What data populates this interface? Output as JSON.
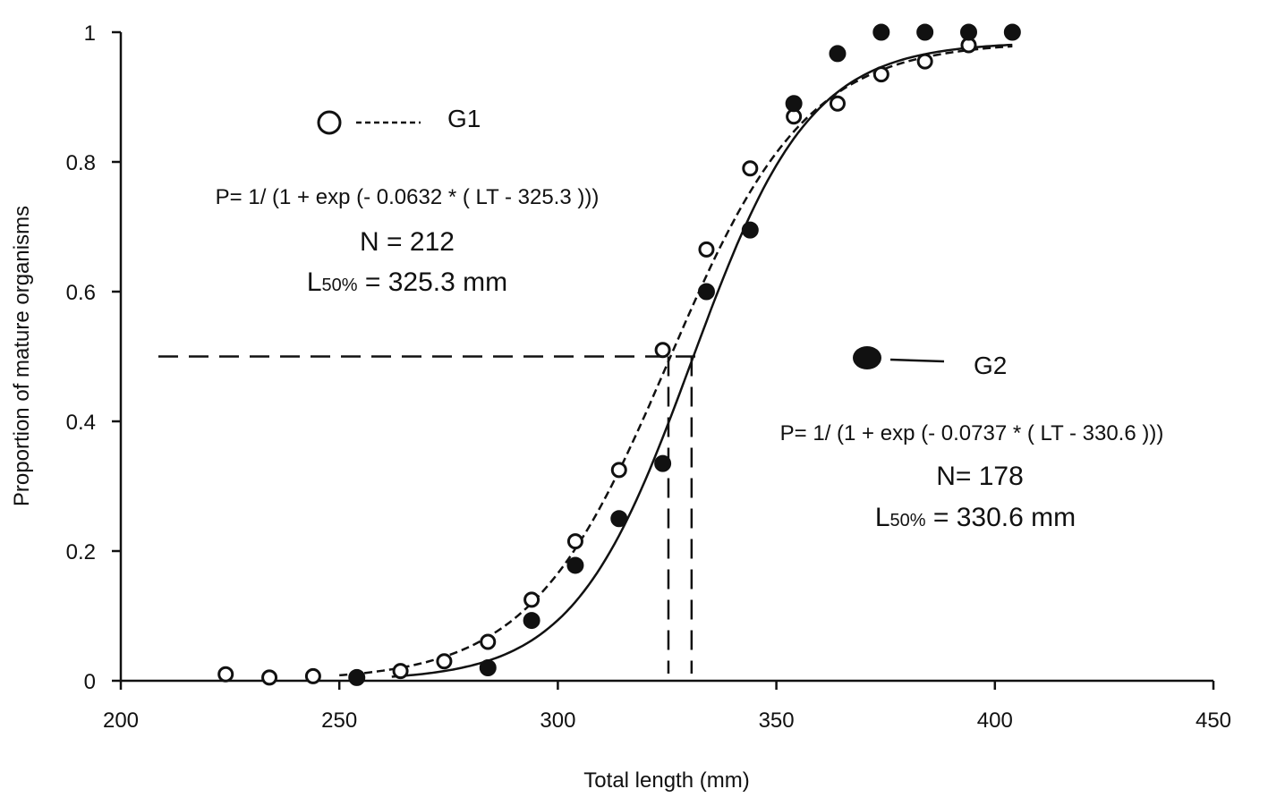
{
  "chart_data": {
    "type": "scatter",
    "title": "",
    "xlabel": "Total length (mm)",
    "ylabel": "Proportion of mature organisms",
    "xlim": [
      200,
      450
    ],
    "ylim": [
      0,
      1
    ],
    "xticks": [
      200,
      250,
      300,
      350,
      400,
      450
    ],
    "yticks": [
      0,
      0.2,
      0.4,
      0.6,
      0.8,
      1
    ],
    "ytick_labels": [
      "0",
      "0.2",
      "0.4",
      "0.6",
      "0.8",
      "1"
    ],
    "grid": false,
    "series": [
      {
        "name": "G1",
        "marker": "open-circle",
        "line": "dashed",
        "x": [
          224,
          234,
          244,
          264,
          274,
          284,
          294,
          304,
          314,
          324,
          334,
          344,
          354,
          364,
          374,
          384,
          394
        ],
        "y": [
          0.01,
          0.005,
          0.007,
          0.015,
          0.03,
          0.06,
          0.125,
          0.215,
          0.325,
          0.51,
          0.665,
          0.79,
          0.87,
          0.89,
          0.935,
          0.955,
          0.98
        ],
        "model": {
          "slope": 0.0632,
          "l50": 325.3
        },
        "equation": "P= 1/ (1 + exp (- 0.0632 * ( LT - 325.3 )))",
        "n_label": "N = 212",
        "l50_prefix": "L",
        "l50_sub": "50%",
        "l50_value": " = 325.3 mm"
      },
      {
        "name": "G2",
        "marker": "filled-circle",
        "line": "solid",
        "x": [
          254,
          284,
          294,
          304,
          314,
          324,
          334,
          344,
          354,
          364,
          374,
          384,
          394,
          404
        ],
        "y": [
          0.005,
          0.02,
          0.093,
          0.178,
          0.25,
          0.335,
          0.6,
          0.695,
          0.89,
          0.967,
          1.0,
          1.0,
          1.0,
          1.0
        ],
        "model": {
          "slope": 0.0737,
          "l50": 330.6
        },
        "equation": "P= 1/ (1 + exp (- 0.0737 * ( LT - 330.6 )))",
        "n_label": "N= 178",
        "l50_prefix": "L",
        "l50_sub": "50%",
        "l50_value": " = 330.6 mm"
      }
    ],
    "reference_lines": {
      "y": 0.5,
      "x": [
        325.3,
        330.6
      ]
    }
  }
}
